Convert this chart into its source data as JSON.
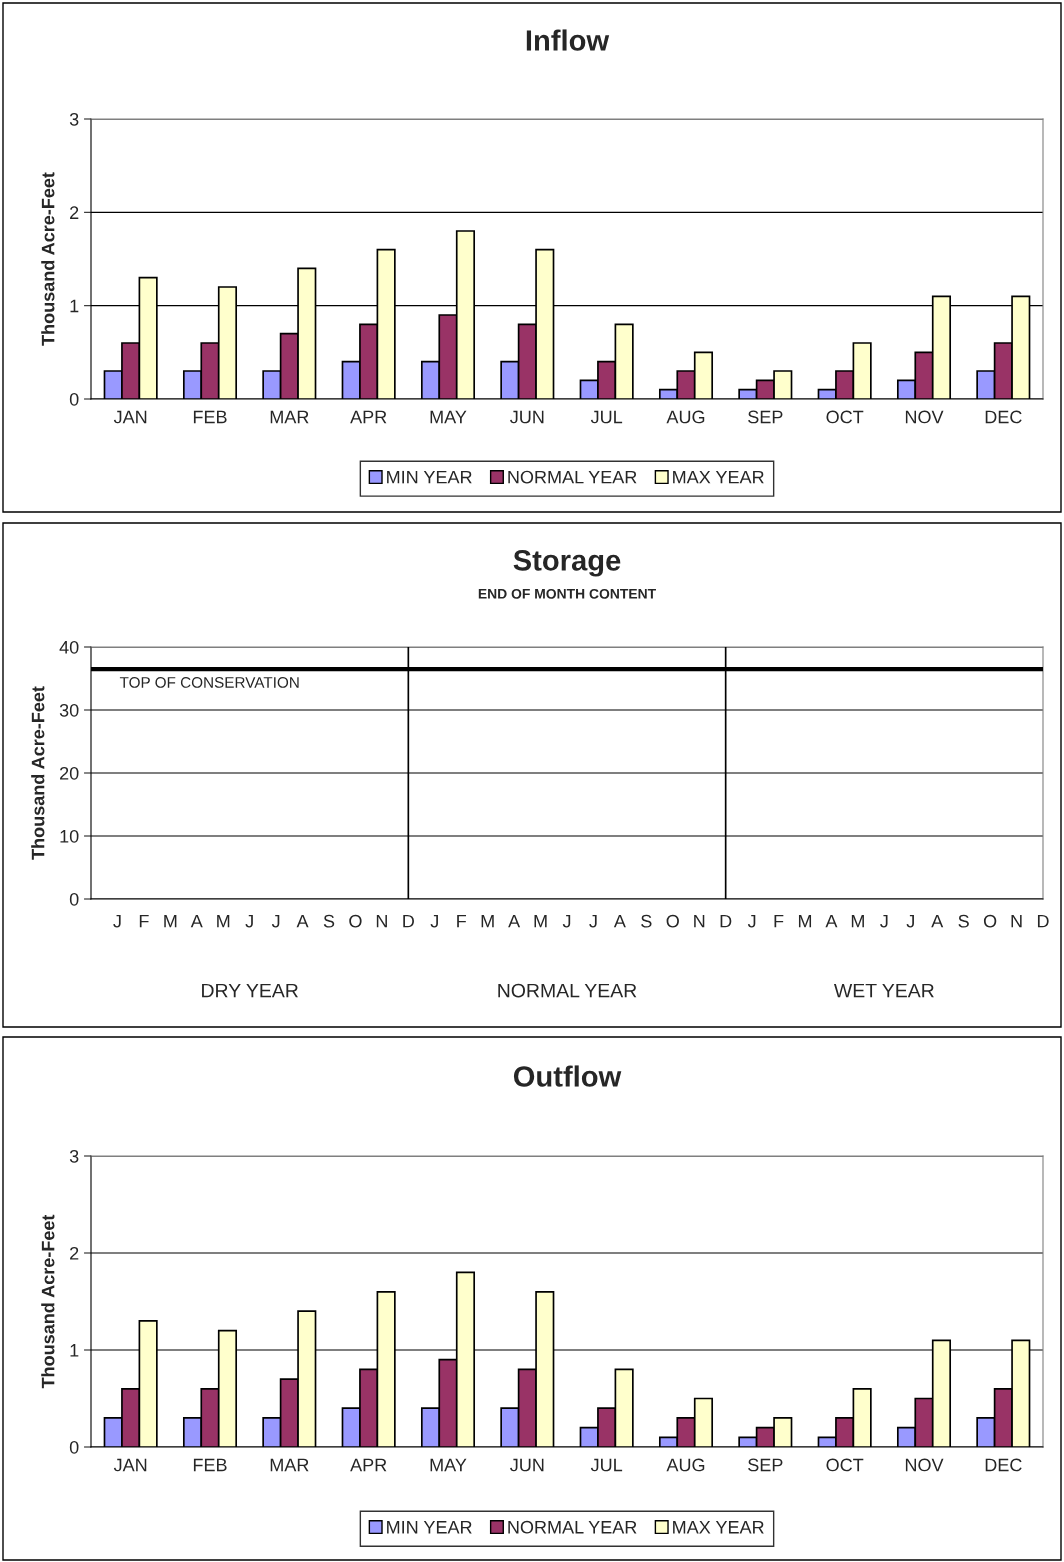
{
  "chart_data": [
    {
      "type": "bar",
      "title": "Inflow",
      "ylabel": "Thousand Acre-Feet",
      "categories": [
        "JAN",
        "FEB",
        "MAR",
        "APR",
        "MAY",
        "JUN",
        "JUL",
        "AUG",
        "SEP",
        "OCT",
        "NOV",
        "DEC"
      ],
      "series": [
        {
          "name": "MIN YEAR",
          "color": "#9999ff",
          "values": [
            0.3,
            0.3,
            0.3,
            0.4,
            0.4,
            0.4,
            0.2,
            0.1,
            0.1,
            0.1,
            0.2,
            0.3
          ]
        },
        {
          "name": "NORMAL YEAR",
          "color": "#993366",
          "values": [
            0.6,
            0.6,
            0.7,
            0.8,
            0.9,
            0.8,
            0.4,
            0.3,
            0.2,
            0.3,
            0.5,
            0.6
          ]
        },
        {
          "name": "MAX YEAR",
          "color": "#ffffcc",
          "values": [
            1.3,
            1.2,
            1.4,
            1.6,
            1.8,
            1.6,
            0.8,
            0.5,
            0.3,
            0.6,
            1.1,
            1.1
          ]
        }
      ],
      "ylim": [
        0,
        3
      ],
      "yticks": [
        0,
        1,
        2,
        3
      ],
      "grid": "y",
      "legend": "bottom"
    },
    {
      "type": "line",
      "title": "Storage",
      "subtitle": "END OF MONTH CONTENT",
      "ylabel": "Thousand Acre-Feet",
      "categories": [
        null,
        "J",
        "F",
        "M",
        "A",
        "M",
        "J",
        "J",
        "A",
        "S",
        "O",
        "N",
        "D",
        "J",
        "F",
        "M",
        "A",
        "M",
        "J",
        "J",
        "A",
        "S",
        "O",
        "N",
        "D",
        "J",
        "F",
        "M",
        "A",
        "M",
        "J",
        "J",
        "A",
        "S",
        "O",
        "N",
        "D"
      ],
      "series": [
        {
          "color": "#000000",
          "values": [
            null,
            null,
            null,
            null,
            null,
            null,
            null,
            null,
            null,
            null,
            null,
            null,
            null,
            null,
            null,
            null,
            null,
            null,
            null,
            null,
            null,
            null,
            null,
            null,
            null,
            null,
            null,
            null,
            null,
            null,
            null,
            null,
            null,
            null,
            null,
            null,
            null
          ]
        }
      ],
      "ylim": [
        0,
        40
      ],
      "yticks": [
        0,
        10,
        20,
        30,
        40
      ],
      "grid": true,
      "ref_lines": [
        {
          "axis": "y",
          "value": 36.5,
          "label": "TOP OF CONSERVATION",
          "color": "#000000"
        }
      ],
      "annotations": [
        "DRY YEAR",
        "NORMAL YEAR",
        "WET YEAR"
      ]
    },
    {
      "type": "bar",
      "title": "Outflow",
      "ylabel": "Thousand Acre-Feet",
      "categories": [
        "JAN",
        "FEB",
        "MAR",
        "APR",
        "MAY",
        "JUN",
        "JUL",
        "AUG",
        "SEP",
        "OCT",
        "NOV",
        "DEC"
      ],
      "series": [
        {
          "name": "MIN YEAR",
          "color": "#9999ff",
          "values": [
            0.3,
            0.3,
            0.3,
            0.4,
            0.4,
            0.4,
            0.2,
            0.1,
            0.1,
            0.1,
            0.2,
            0.3
          ]
        },
        {
          "name": "NORMAL YEAR",
          "color": "#993366",
          "values": [
            0.6,
            0.6,
            0.7,
            0.8,
            0.9,
            0.8,
            0.4,
            0.3,
            0.2,
            0.3,
            0.5,
            0.6
          ]
        },
        {
          "name": "MAX YEAR",
          "color": "#ffffcc",
          "values": [
            1.3,
            1.2,
            1.4,
            1.6,
            1.8,
            1.6,
            0.8,
            0.5,
            0.3,
            0.6,
            1.1,
            1.1
          ]
        }
      ],
      "ylim": [
        0,
        3
      ],
      "yticks": [
        0,
        1,
        2,
        3
      ],
      "grid": "y",
      "legend": "bottom"
    }
  ]
}
